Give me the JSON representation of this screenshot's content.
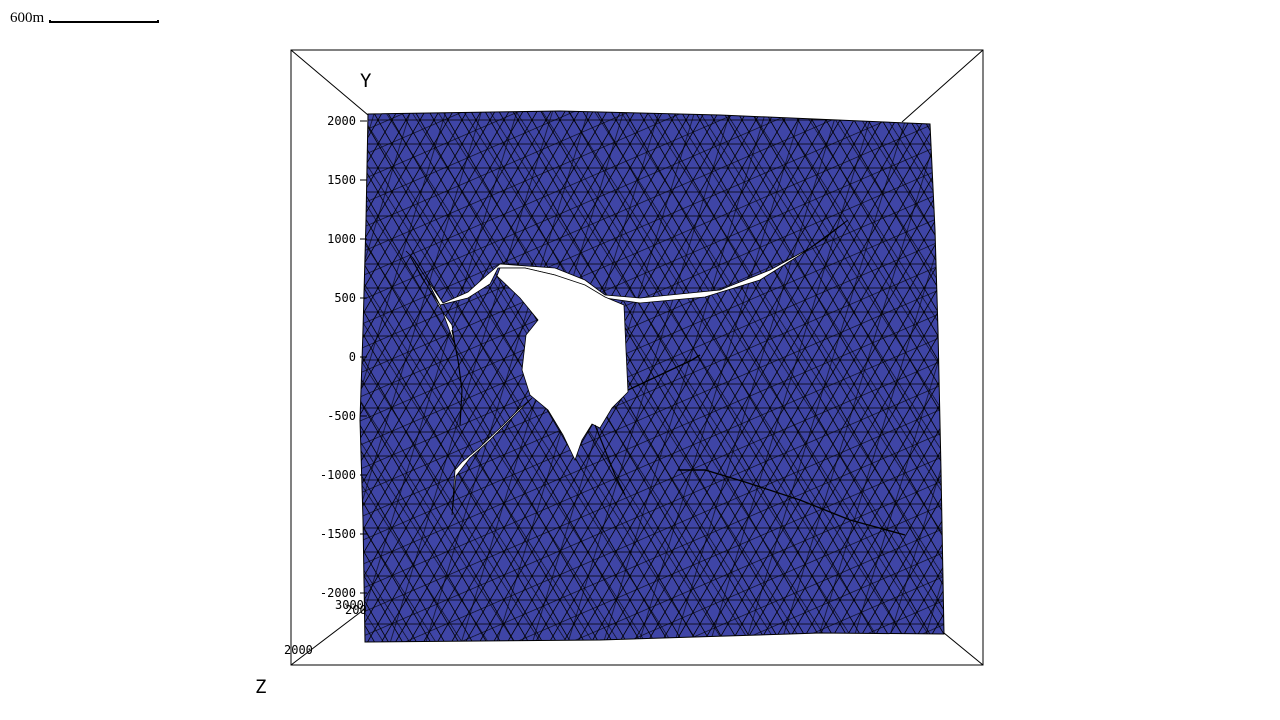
{
  "scale_bar": {
    "label": "600m"
  },
  "axes": {
    "y_title": "Y",
    "z_title": "Z",
    "y_ticks": [
      "2000",
      "1500",
      "1000",
      "500",
      "0",
      "-500",
      "-1000",
      "-1500",
      "-2000"
    ],
    "z_ticks": [
      "3000",
      "2000"
    ],
    "z_tick_extra": "200"
  },
  "colors": {
    "mesh_fill": "#3f45a6",
    "mesh_edges": "#000000",
    "background": "#ffffff",
    "frame": "#000000"
  }
}
